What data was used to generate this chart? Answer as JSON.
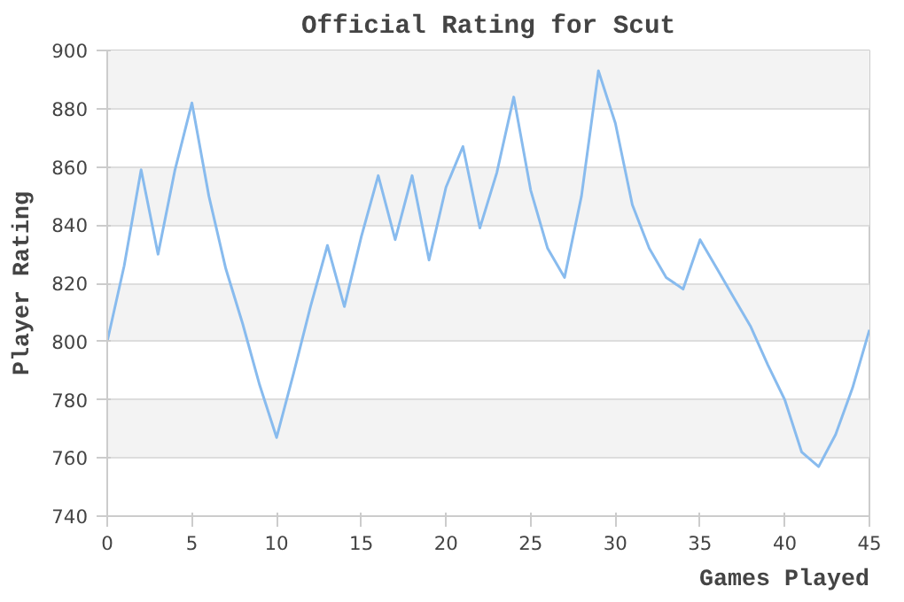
{
  "chart_data": {
    "type": "line",
    "title": "Official Rating for Scut",
    "xlabel": "Games Played",
    "ylabel": "Player Rating",
    "x": [
      0,
      1,
      2,
      3,
      4,
      5,
      6,
      7,
      8,
      9,
      10,
      11,
      12,
      13,
      14,
      15,
      16,
      17,
      18,
      19,
      20,
      21,
      22,
      23,
      24,
      25,
      26,
      27,
      28,
      29,
      30,
      31,
      32,
      33,
      34,
      35,
      36,
      37,
      38,
      39,
      40,
      41,
      42,
      43,
      44,
      45
    ],
    "series": [
      {
        "color": "#88bbee",
        "values": [
          800,
          826,
          859,
          830,
          859,
          882,
          850,
          825,
          806,
          785,
          767,
          789,
          812,
          833,
          812,
          836,
          857,
          835,
          857,
          828,
          853,
          867,
          839,
          858,
          884,
          852,
          832,
          822,
          850,
          893,
          875,
          847,
          832,
          822,
          818,
          835,
          825,
          815,
          805,
          792,
          780,
          762,
          757,
          768,
          784,
          804
        ]
      }
    ],
    "xlim": [
      0,
      45
    ],
    "ylim": [
      740,
      900
    ],
    "xticks": [
      0,
      5,
      10,
      15,
      20,
      25,
      30,
      35,
      40,
      45
    ],
    "yticks": [
      740,
      760,
      780,
      800,
      820,
      840,
      860,
      880,
      900
    ],
    "grid": "y",
    "marker": "none",
    "line_style": "solid"
  }
}
